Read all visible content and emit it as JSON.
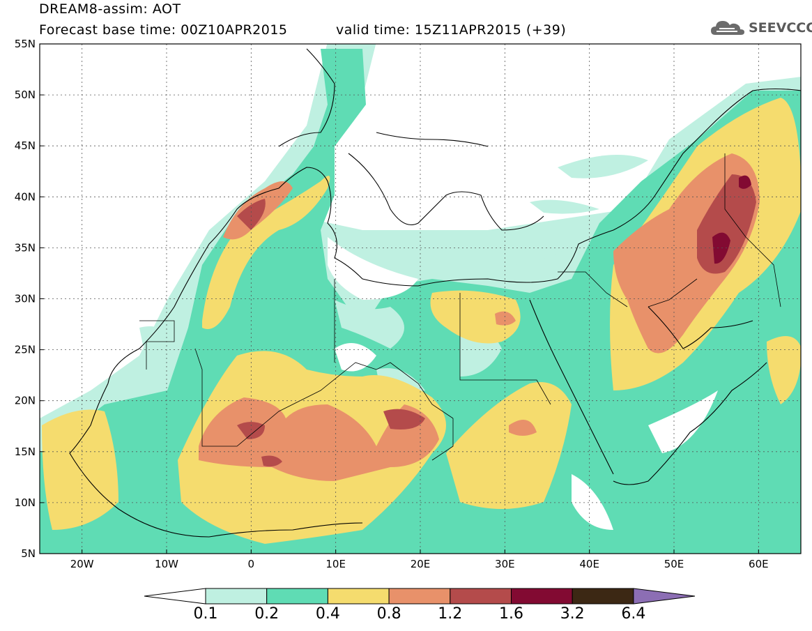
{
  "header": {
    "title_line1": "DREAM8-assim: AOT",
    "title_line2": "Forecast base time: 00Z10APR2015",
    "valid_time": "valid time: 15Z11APR2015 (+39)"
  },
  "logo": {
    "text": "SEEVCCC",
    "icon": "cloud-logo-icon"
  },
  "map": {
    "region": "North Africa / Mediterranean / Middle East",
    "lon_range": [
      -25,
      65
    ],
    "lat_range": [
      5,
      55
    ],
    "lat_ticks": [
      "55N",
      "50N",
      "45N",
      "40N",
      "35N",
      "30N",
      "25N",
      "20N",
      "15N",
      "10N",
      "5N"
    ],
    "lon_ticks": [
      "20W",
      "10W",
      "0",
      "10E",
      "20E",
      "30E",
      "40E",
      "50E",
      "60E"
    ],
    "grid": "dotted"
  },
  "colorbar": {
    "labels": [
      "0.1",
      "0.2",
      "0.4",
      "0.8",
      "1.2",
      "1.6",
      "3.2",
      "6.4"
    ],
    "colors": [
      "#ffffff",
      "#bff0e1",
      "#5fdcb4",
      "#f5dc6e",
      "#e8916a",
      "#b44b4b",
      "#820a32",
      "#3c2814",
      "#8c6eb4"
    ]
  },
  "fields": {
    "light_cyan": "#bff0e1",
    "green": "#5fdcb4",
    "yellow": "#f5dc6e",
    "orange": "#e8916a",
    "red": "#b44b4b",
    "dark_red": "#820a32"
  }
}
